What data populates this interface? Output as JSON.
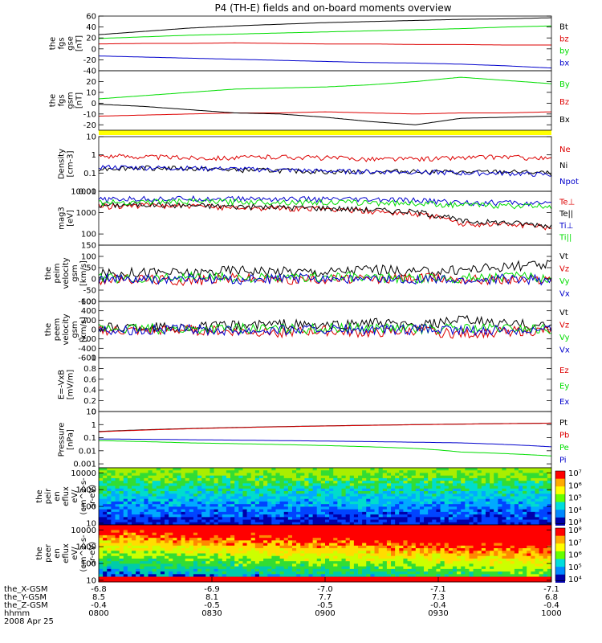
{
  "title": "P4 (TH-E) fields and on-board moments overview",
  "date": "2008 Apr 25",
  "colors": {
    "black": "#000000",
    "red": "#dd0000",
    "green": "#00dd00",
    "blue": "#0000cc",
    "yellow": "#ffff00"
  },
  "chart_data": [
    {
      "type": "line",
      "id": "fgs_gse",
      "ylabel": [
        "the",
        "fgs",
        "gse",
        "[nT]"
      ],
      "ylim": [
        -40,
        60
      ],
      "log": false,
      "yticks": [
        -40,
        -20,
        0,
        20,
        40,
        60
      ],
      "series": [
        {
          "name": "Bt",
          "color": "black",
          "values": [
            26,
            32,
            38,
            42,
            45,
            48,
            50,
            52,
            54,
            55,
            57
          ]
        },
        {
          "name": "bz",
          "color": "red",
          "values": [
            9,
            10,
            10,
            11,
            10,
            9,
            9,
            8,
            8,
            7,
            7
          ]
        },
        {
          "name": "by",
          "color": "green",
          "values": [
            19,
            22,
            25,
            27,
            29,
            31,
            33,
            35,
            37,
            40,
            42
          ]
        },
        {
          "name": "bx",
          "color": "blue",
          "values": [
            -13,
            -15,
            -17,
            -19,
            -21,
            -23,
            -25,
            -26,
            -28,
            -31,
            -35
          ]
        }
      ]
    },
    {
      "type": "line",
      "id": "fgs_gsm",
      "ylabel": [
        "the",
        "fgs",
        "gsm",
        "[nT]"
      ],
      "ylim": [
        -25,
        30
      ],
      "log": false,
      "yticks": [
        -20,
        -10,
        0,
        10,
        20
      ],
      "series": [
        {
          "name": "By",
          "color": "green",
          "values": [
            4,
            7,
            10,
            13,
            14,
            15,
            17,
            20,
            24,
            21,
            18
          ]
        },
        {
          "name": "Bz",
          "color": "red",
          "values": [
            -12,
            -11,
            -10,
            -9,
            -9,
            -8,
            -9,
            -10,
            -9,
            -9,
            -8
          ]
        },
        {
          "name": "Bx",
          "color": "black",
          "values": [
            -1,
            -3,
            -6,
            -9,
            -10,
            -13,
            -17,
            -20,
            -14,
            -13,
            -12
          ]
        }
      ]
    },
    {
      "type": "line",
      "id": "density",
      "ylabel": [
        "Density",
        "[cm-3]"
      ],
      "ylim": [
        0.01,
        10
      ],
      "log": true,
      "yticks": [
        0.01,
        0.1,
        1.0,
        10.0
      ],
      "series": [
        {
          "name": "Ne",
          "color": "red",
          "values": [
            0.9,
            0.8,
            0.7,
            0.7,
            0.8,
            0.7,
            0.6,
            0.6,
            0.7,
            0.8,
            0.6
          ]
        },
        {
          "name": "Ni",
          "color": "black",
          "values": [
            0.18,
            0.2,
            0.18,
            0.15,
            0.14,
            0.12,
            0.12,
            0.13,
            0.11,
            0.12,
            0.1
          ]
        },
        {
          "name": "Npot",
          "color": "blue",
          "values": [
            0.22,
            0.2,
            0.19,
            0.17,
            0.15,
            0.13,
            0.12,
            0.12,
            0.1,
            0.1,
            0.08
          ]
        }
      ]
    },
    {
      "type": "line",
      "id": "temperature",
      "ylabel": [
        "mag3",
        "[eV]"
      ],
      "ylim": [
        30,
        10000
      ],
      "log": true,
      "yticks": [
        100,
        1000,
        10000
      ],
      "series": [
        {
          "name": "Te⊥",
          "color": "red",
          "values": [
            2000,
            2200,
            2000,
            1800,
            1600,
            1500,
            1200,
            900,
            300,
            300,
            200
          ]
        },
        {
          "name": "Te||",
          "color": "black",
          "values": [
            2200,
            2500,
            2200,
            2000,
            1800,
            1700,
            1400,
            1100,
            400,
            350,
            250
          ]
        },
        {
          "name": "Ti⊥",
          "color": "blue",
          "values": [
            4000,
            4500,
            4600,
            4500,
            4400,
            4200,
            4000,
            3800,
            3000,
            3000,
            2500
          ]
        },
        {
          "name": "Ti||",
          "color": "green",
          "values": [
            3000,
            3300,
            3400,
            3300,
            3200,
            3100,
            3000,
            2800,
            2300,
            2200,
            2000
          ]
        }
      ]
    },
    {
      "type": "line",
      "id": "peim_velocity",
      "ylabel": [
        "the",
        "peim",
        "velocity",
        "gsm",
        "[km/s]"
      ],
      "ylim": [
        -100,
        150
      ],
      "log": false,
      "yticks": [
        -100,
        -50,
        0,
        50,
        100,
        150
      ],
      "series": [
        {
          "name": "Vt",
          "color": "black",
          "values": [
            20,
            30,
            25,
            40,
            35,
            30,
            45,
            30,
            40,
            55,
            60
          ]
        },
        {
          "name": "Vz",
          "color": "red",
          "values": [
            -5,
            0,
            -10,
            5,
            -5,
            0,
            -5,
            5,
            0,
            -5,
            0
          ]
        },
        {
          "name": "Vy",
          "color": "green",
          "values": [
            5,
            0,
            10,
            5,
            0,
            10,
            5,
            0,
            5,
            10,
            5
          ]
        },
        {
          "name": "Vx",
          "color": "blue",
          "values": [
            0,
            -5,
            0,
            -5,
            0,
            5,
            -5,
            0,
            -10,
            0,
            -5
          ]
        }
      ]
    },
    {
      "type": "line",
      "id": "peem_velocity",
      "ylabel": [
        "the",
        "peem",
        "velocity",
        "gsm",
        "[km/s]"
      ],
      "ylim": [
        -600,
        600
      ],
      "log": false,
      "yticks": [
        -600,
        -400,
        -200,
        0,
        200,
        400,
        600
      ],
      "series": [
        {
          "name": "Vt",
          "color": "black",
          "values": [
            40,
            60,
            50,
            80,
            120,
            70,
            150,
            60,
            200,
            120,
            80
          ]
        },
        {
          "name": "Vz",
          "color": "red",
          "values": [
            -20,
            -30,
            -10,
            -40,
            -60,
            -30,
            -80,
            -20,
            -100,
            -40,
            -30
          ]
        },
        {
          "name": "Vy",
          "color": "green",
          "values": [
            10,
            20,
            0,
            30,
            10,
            20,
            40,
            10,
            30,
            20,
            10
          ]
        },
        {
          "name": "Vx",
          "color": "blue",
          "values": [
            0,
            -10,
            0,
            -20,
            -10,
            0,
            -30,
            0,
            -20,
            -10,
            0
          ]
        }
      ]
    },
    {
      "type": "line",
      "id": "efield",
      "ylabel": [
        "E=-VxB",
        "[mV/m]"
      ],
      "ylim": [
        0,
        1
      ],
      "log": false,
      "yticks": [
        0.0,
        0.2,
        0.4,
        0.6,
        0.8,
        1.0
      ],
      "series": [
        {
          "name": "Ez",
          "color": "red",
          "values": []
        },
        {
          "name": "Ey",
          "color": "green",
          "values": []
        },
        {
          "name": "Ex",
          "color": "blue",
          "values": []
        }
      ]
    },
    {
      "type": "line",
      "id": "pressure",
      "ylabel": [
        "Pressure",
        "[nPa]"
      ],
      "ylim": [
        0.0005,
        10
      ],
      "log": true,
      "yticks": [
        0.001,
        0.01,
        0.1,
        1.0,
        10.0
      ],
      "series": [
        {
          "name": "Pt",
          "color": "black",
          "values": [
            0.3,
            0.4,
            0.5,
            0.6,
            0.7,
            0.8,
            0.9,
            1.0,
            1.1,
            1.2,
            1.3
          ]
        },
        {
          "name": "Pb",
          "color": "red",
          "values": [
            0.28,
            0.38,
            0.48,
            0.58,
            0.68,
            0.78,
            0.88,
            0.98,
            1.08,
            1.18,
            1.28
          ]
        },
        {
          "name": "Pe",
          "color": "green",
          "values": [
            0.06,
            0.05,
            0.04,
            0.035,
            0.03,
            0.025,
            0.02,
            0.015,
            0.008,
            0.006,
            0.004
          ]
        },
        {
          "name": "Pi",
          "color": "blue",
          "values": [
            0.08,
            0.075,
            0.07,
            0.065,
            0.06,
            0.055,
            0.05,
            0.045,
            0.04,
            0.03,
            0.02
          ]
        }
      ]
    },
    {
      "type": "heatmap",
      "id": "peir_eflux",
      "ylabel": [
        "the",
        "peir",
        "en",
        "eflux",
        "eV/",
        "(cm^2-s-",
        "sr-eV)"
      ],
      "yticks": [
        10,
        100,
        1000,
        10000
      ],
      "ylim": [
        8,
        20000
      ],
      "log": true,
      "colorbar": {
        "ticks": [
          "10⁷",
          "10⁶",
          "10⁵",
          "10⁴",
          "10³"
        ]
      }
    },
    {
      "type": "heatmap",
      "id": "peer_eflux",
      "ylabel": [
        "the",
        "peer",
        "en",
        "eflux",
        "eV/",
        "(cm^2-s-",
        "sr-eV)"
      ],
      "yticks": [
        10,
        100,
        1000,
        10000
      ],
      "ylim": [
        8,
        20000
      ],
      "log": true,
      "colorbar": {
        "ticks": [
          "10⁸",
          "10⁷",
          "10⁶",
          "10⁵",
          "10⁴"
        ]
      }
    }
  ],
  "xaxis": {
    "rows": [
      {
        "label": "the_X-GSM",
        "values": [
          "-6.8",
          "-6.9",
          "-7.0",
          "-7.1",
          "-7.1"
        ]
      },
      {
        "label": "the_Y-GSM",
        "values": [
          "8.5",
          "8.1",
          "7.7",
          "7.3",
          "6.8"
        ]
      },
      {
        "label": "the_Z-GSM",
        "values": [
          "-0.4",
          "-0.5",
          "-0.5",
          "-0.4",
          "-0.4"
        ]
      },
      {
        "label": "hhmm",
        "values": [
          "0800",
          "0830",
          "0900",
          "0930",
          "1000"
        ]
      }
    ]
  }
}
